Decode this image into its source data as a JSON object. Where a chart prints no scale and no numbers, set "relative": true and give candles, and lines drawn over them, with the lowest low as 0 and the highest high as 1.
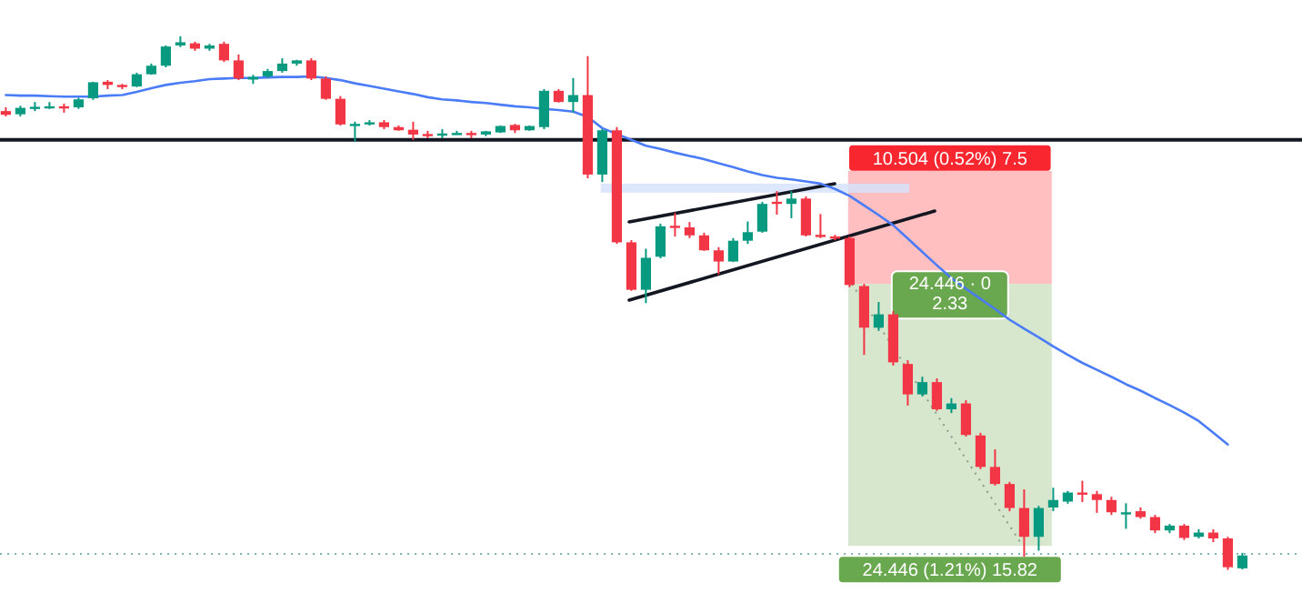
{
  "chart_data": {
    "type": "candlestick",
    "relative": true,
    "series": [
      {
        "type": "line",
        "color": "#4a7cf7",
        "values": [
          0.89,
          0.889,
          0.889,
          0.888,
          0.887,
          0.887,
          0.887,
          0.889,
          0.89,
          0.896,
          0.903,
          0.909,
          0.913,
          0.916,
          0.92,
          0.921,
          0.922,
          0.922,
          0.923,
          0.924,
          0.924,
          0.925,
          0.922,
          0.918,
          0.912,
          0.907,
          0.902,
          0.897,
          0.892,
          0.886,
          0.882,
          0.88,
          0.877,
          0.875,
          0.872,
          0.869,
          0.867,
          0.864,
          0.862,
          0.859,
          0.849,
          0.828,
          0.817,
          0.806,
          0.795,
          0.789,
          0.782,
          0.776,
          0.77,
          0.762,
          0.755,
          0.747,
          0.74,
          0.735,
          0.732,
          0.728,
          0.724,
          0.714,
          0.701,
          0.683,
          0.665,
          0.646,
          0.621,
          0.596,
          0.571,
          0.547,
          0.527,
          0.508,
          0.489,
          0.469,
          0.452,
          0.436,
          0.419,
          0.403,
          0.388,
          0.375,
          0.362,
          0.348,
          0.336,
          0.322,
          0.309,
          0.295,
          0.279,
          0.257,
          0.235,
          null
        ]
      }
    ],
    "categories": [
      null,
      null,
      null,
      null,
      null,
      null,
      null,
      null,
      null,
      null,
      null,
      null,
      null,
      null,
      null,
      null,
      null,
      null,
      null,
      null,
      null,
      null,
      null,
      null,
      null,
      null,
      null,
      null,
      null,
      null,
      null,
      null,
      null,
      null,
      null,
      null,
      null,
      null,
      null,
      null,
      null,
      null,
      null,
      null,
      null,
      null,
      null,
      null,
      null,
      null,
      null,
      null,
      null,
      null,
      null,
      null,
      null,
      null,
      null,
      null,
      null,
      null,
      null,
      null,
      null,
      null,
      null,
      null,
      null,
      null,
      null,
      null,
      null,
      null,
      null,
      null,
      null,
      null,
      null,
      null,
      null,
      null,
      null,
      null,
      null,
      null
    ],
    "ohlc": [
      [
        0.86,
        0.867,
        0.85,
        0.853
      ],
      [
        0.854,
        0.87,
        0.85,
        0.866
      ],
      [
        0.867,
        0.877,
        0.86,
        0.868
      ],
      [
        0.868,
        0.877,
        0.864,
        0.869
      ],
      [
        0.869,
        0.874,
        0.857,
        0.868
      ],
      [
        0.867,
        0.885,
        0.864,
        0.882
      ],
      [
        0.884,
        0.915,
        0.881,
        0.914
      ],
      [
        0.915,
        0.918,
        0.901,
        0.909
      ],
      [
        0.909,
        0.911,
        0.901,
        0.905
      ],
      [
        0.906,
        0.932,
        0.905,
        0.929
      ],
      [
        0.929,
        0.949,
        0.928,
        0.945
      ],
      [
        0.945,
        0.983,
        0.942,
        0.981
      ],
      [
        0.983,
        1.0,
        0.98,
        0.989
      ],
      [
        0.987,
        0.99,
        0.973,
        0.977
      ],
      [
        0.977,
        0.986,
        0.973,
        0.983
      ],
      [
        0.986,
        0.99,
        0.952,
        0.955
      ],
      [
        0.955,
        0.966,
        0.918,
        0.921
      ],
      [
        0.919,
        0.928,
        0.911,
        0.924
      ],
      [
        0.925,
        0.939,
        0.922,
        0.935
      ],
      [
        0.935,
        0.959,
        0.932,
        0.949
      ],
      [
        0.949,
        0.956,
        0.945,
        0.955
      ],
      [
        0.955,
        0.959,
        0.918,
        0.921
      ],
      [
        0.921,
        0.925,
        0.881,
        0.883
      ],
      [
        0.883,
        0.888,
        0.833,
        0.835
      ],
      [
        0.835,
        0.84,
        0.803,
        0.836
      ],
      [
        0.837,
        0.843,
        0.833,
        0.839
      ],
      [
        0.839,
        0.843,
        0.826,
        0.83
      ],
      [
        0.83,
        0.833,
        0.823,
        0.824
      ],
      [
        0.825,
        0.84,
        0.806,
        0.816
      ],
      [
        0.817,
        0.823,
        0.809,
        0.816
      ],
      [
        0.817,
        0.826,
        0.809,
        0.818
      ],
      [
        0.818,
        0.823,
        0.816,
        0.819
      ],
      [
        0.819,
        0.823,
        0.809,
        0.818
      ],
      [
        0.816,
        0.823,
        0.813,
        0.822
      ],
      [
        0.82,
        0.833,
        0.819,
        0.832
      ],
      [
        0.834,
        0.836,
        0.819,
        0.824
      ],
      [
        0.824,
        0.833,
        0.823,
        0.832
      ],
      [
        0.83,
        0.901,
        0.826,
        0.898
      ],
      [
        0.898,
        0.901,
        0.876,
        0.877
      ],
      [
        0.877,
        0.922,
        0.857,
        0.89
      ],
      [
        0.89,
        0.963,
        0.734,
        0.741
      ],
      [
        0.741,
        0.826,
        0.727,
        0.824
      ],
      [
        0.824,
        0.83,
        0.611,
        0.614
      ],
      [
        0.614,
        0.618,
        0.523,
        0.525
      ],
      [
        0.525,
        0.602,
        0.5,
        0.585
      ],
      [
        0.587,
        0.649,
        0.584,
        0.644
      ],
      [
        0.645,
        0.669,
        0.625,
        0.643
      ],
      [
        0.642,
        0.652,
        0.622,
        0.627
      ],
      [
        0.627,
        0.632,
        0.598,
        0.599
      ],
      [
        0.599,
        0.605,
        0.554,
        0.578
      ],
      [
        0.578,
        0.622,
        0.577,
        0.617
      ],
      [
        0.617,
        0.653,
        0.611,
        0.633
      ],
      [
        0.634,
        0.69,
        0.632,
        0.686
      ],
      [
        0.69,
        0.71,
        0.666,
        0.687
      ],
      [
        0.686,
        0.71,
        0.659,
        0.696
      ],
      [
        0.696,
        0.7,
        0.625,
        0.627
      ],
      [
        0.628,
        0.667,
        0.622,
        0.626
      ],
      [
        0.625,
        0.628,
        0.618,
        0.622
      ],
      [
        0.622,
        0.625,
        0.53,
        0.534
      ],
      [
        0.532,
        0.536,
        0.403,
        0.454
      ],
      [
        0.454,
        0.502,
        0.448,
        0.479
      ],
      [
        0.479,
        0.485,
        0.383,
        0.389
      ],
      [
        0.386,
        0.393,
        0.308,
        0.329
      ],
      [
        0.329,
        0.362,
        0.325,
        0.352
      ],
      [
        0.352,
        0.359,
        0.298,
        0.301
      ],
      [
        0.301,
        0.322,
        0.294,
        0.312
      ],
      [
        0.312,
        0.318,
        0.25,
        0.253
      ],
      [
        0.252,
        0.257,
        0.189,
        0.193
      ],
      [
        0.193,
        0.226,
        0.158,
        0.161
      ],
      [
        0.161,
        0.165,
        0.11,
        0.116
      ],
      [
        0.116,
        0.151,
        0.025,
        0.062
      ],
      [
        0.062,
        0.12,
        0.036,
        0.116
      ],
      [
        0.117,
        0.154,
        0.11,
        0.131
      ],
      [
        0.128,
        0.148,
        0.124,
        0.145
      ],
      [
        0.145,
        0.167,
        0.127,
        0.143
      ],
      [
        0.142,
        0.148,
        0.107,
        0.131
      ],
      [
        0.131,
        0.137,
        0.103,
        0.108
      ],
      [
        0.107,
        0.125,
        0.077,
        0.108
      ],
      [
        0.11,
        0.117,
        0.096,
        0.099
      ],
      [
        0.099,
        0.103,
        0.069,
        0.074
      ],
      [
        0.074,
        0.086,
        0.069,
        0.083
      ],
      [
        0.083,
        0.086,
        0.056,
        0.06
      ],
      [
        0.062,
        0.076,
        0.059,
        0.07
      ],
      [
        0.07,
        0.076,
        0.052,
        0.059
      ],
      [
        0.059,
        0.062,
        0.0,
        0.005
      ],
      [
        0.003,
        0.032,
        0.001,
        0.027
      ]
    ],
    "colors": [
      "#f23645",
      "#089981",
      "#089981",
      "#089981",
      "#f23645",
      "#089981",
      "#089981",
      "#f23645",
      "#f23645",
      "#089981",
      "#089981",
      "#089981",
      "#089981",
      "#f23645",
      "#089981",
      "#f23645",
      "#f23645",
      "#089981",
      "#089981",
      "#089981",
      "#089981",
      "#f23645",
      "#f23645",
      "#f23645",
      "#089981",
      "#089981",
      "#f23645",
      "#f23645",
      "#f23645",
      "#f23645",
      "#089981",
      "#089981",
      "#f23645",
      "#089981",
      "#089981",
      "#f23645",
      "#089981",
      "#089981",
      "#f23645",
      "#089981",
      "#f23645",
      "#089981",
      "#f23645",
      "#f23645",
      "#089981",
      "#089981",
      "#f23645",
      "#f23645",
      "#f23645",
      "#f23645",
      "#089981",
      "#089981",
      "#089981",
      "#f23645",
      "#089981",
      "#f23645",
      "#f23645",
      "#f23645",
      "#f23645",
      "#f23645",
      "#089981",
      "#f23645",
      "#f23645",
      "#089981",
      "#f23645",
      "#089981",
      "#f23645",
      "#f23645",
      "#f23645",
      "#f23645",
      "#f23645",
      "#089981",
      "#089981",
      "#089981",
      "#f23645",
      "#f23645",
      "#f23645",
      "#089981",
      "#f23645",
      "#f23645",
      "#089981",
      "#f23645",
      "#089981",
      "#f23645",
      "#f23645",
      "#089981"
    ],
    "ref_lines": [
      {
        "axis": "y",
        "value": 0.806,
        "color": "#131722"
      },
      {
        "axis": "y",
        "value": 0.03,
        "color": "#7fb5b0",
        "line_style": "dotted"
      }
    ],
    "bands": [
      {
        "axis": "y",
        "from": 0.536,
        "to": 0.748,
        "label": "10.504 (0.52%) 7.5",
        "color": "#ffb3b5"
      },
      {
        "axis": "y",
        "from": 0.045,
        "to": 0.536,
        "label": "24.446 (1.21%) 15.82",
        "color": "#cfe3c5"
      },
      {
        "axis": "y",
        "from": 0.707,
        "to": 0.724,
        "color": "#d6e2fb"
      }
    ],
    "annotations": [
      "24.446 · 0",
      "2.33"
    ]
  }
}
